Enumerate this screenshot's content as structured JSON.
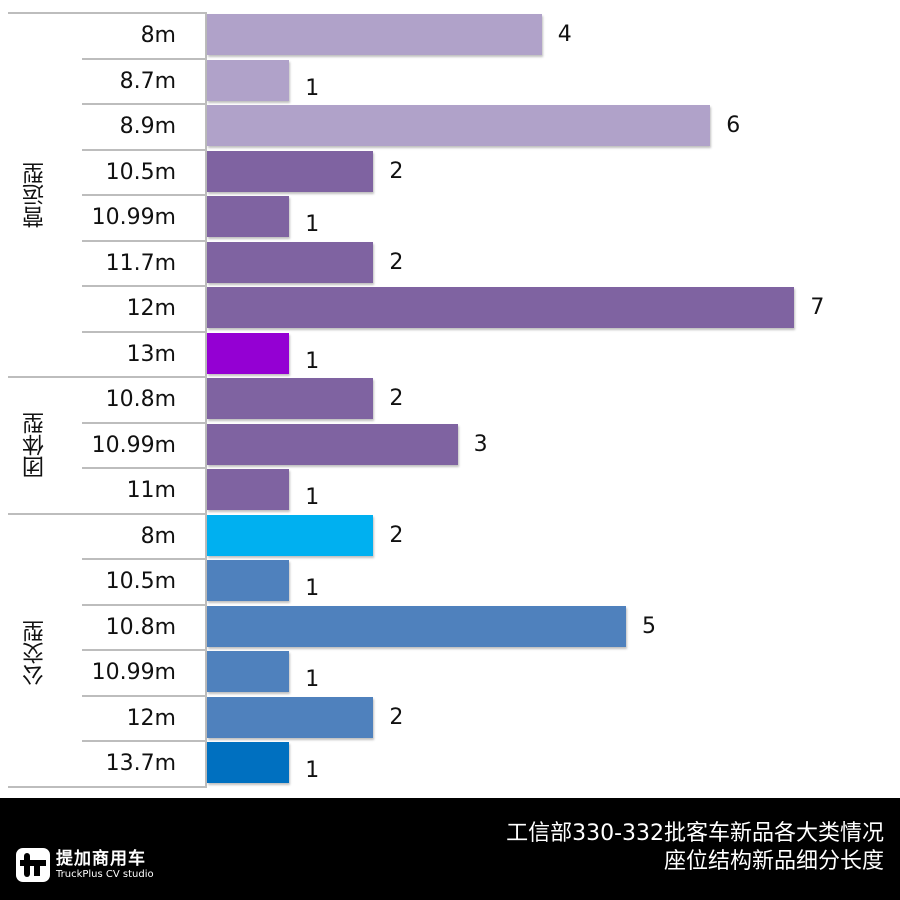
{
  "chart_data": {
    "type": "bar",
    "orientation": "horizontal",
    "title": "工信部330-332批客车新品各大类情况 座位结构新品细分长度",
    "xlabel": "",
    "ylabel": "",
    "grid": false,
    "legend": null,
    "groups": [
      {
        "name": "营运型",
        "categories": [
          "8m",
          "8.7m",
          "8.9m",
          "10.5m",
          "10.99m",
          "11.7m",
          "12m",
          "13m"
        ],
        "values": [
          4,
          1,
          6,
          2,
          1,
          2,
          7,
          1
        ]
      },
      {
        "name": "团体型",
        "categories": [
          "10.8m",
          "10.99m",
          "11m"
        ],
        "values": [
          2,
          3,
          1
        ]
      },
      {
        "name": "公交型",
        "categories": [
          "8m",
          "10.5m",
          "10.8m",
          "10.99m",
          "12m",
          "13.7m"
        ],
        "values": [
          2,
          1,
          5,
          1,
          2,
          1
        ]
      }
    ],
    "xlim": [
      0,
      8
    ]
  },
  "rows": [
    {
      "label": "8m",
      "value": "4",
      "color": "#b0a2c9"
    },
    {
      "label": "8.7m",
      "value": "1",
      "color": "#b0a2c9"
    },
    {
      "label": "8.9m",
      "value": "6",
      "color": "#b0a2c9"
    },
    {
      "label": "10.5m",
      "value": "2",
      "color": "#7f63a1"
    },
    {
      "label": "10.99m",
      "value": "1",
      "color": "#7f63a1"
    },
    {
      "label": "11.7m",
      "value": "2",
      "color": "#7f63a1"
    },
    {
      "label": "12m",
      "value": "7",
      "color": "#7f63a1"
    },
    {
      "label": "13m",
      "value": "1",
      "color": "#9400d3"
    },
    {
      "label": "10.8m",
      "value": "2",
      "color": "#7f63a1"
    },
    {
      "label": "10.99m",
      "value": "3",
      "color": "#7f63a1"
    },
    {
      "label": "11m",
      "value": "1",
      "color": "#7f63a1"
    },
    {
      "label": "8m",
      "value": "2",
      "color": "#00b0f0"
    },
    {
      "label": "10.5m",
      "value": "1",
      "color": "#4f81bd"
    },
    {
      "label": "10.8m",
      "value": "5",
      "color": "#4f81bd"
    },
    {
      "label": "10.99m",
      "value": "1",
      "color": "#4f81bd"
    },
    {
      "label": "12m",
      "value": "2",
      "color": "#4f81bd"
    },
    {
      "label": "13.7m",
      "value": "1",
      "color": "#0070c0"
    }
  ],
  "group_labels": [
    "营运型",
    "团体型",
    "公交型"
  ],
  "footer": {
    "logo_cn": "提加商用车",
    "logo_en": "TruckPlus CV studio",
    "title_line1": "工信部330-332批客车新品各大类情况",
    "title_line2": "座位结构新品细分长度"
  }
}
